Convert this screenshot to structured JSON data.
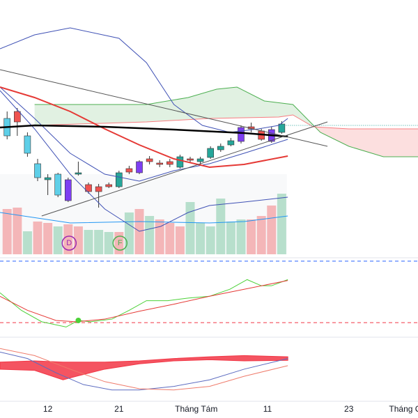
{
  "chart_data": [
    {
      "type": "candlestick",
      "xlim": [
        -0.7,
        40.4
      ],
      "ylim": [
        0,
        370
      ],
      "open": [
        175,
        210,
        175,
        135,
        115,
        120,
        112,
        120,
        105,
        95,
        102,
        102,
        128,
        122,
        138,
        136,
        134,
        130,
        142,
        138,
        144,
        155,
        162,
        167,
        185,
        182,
        167,
        180
      ],
      "high": [
        210,
        215,
        180,
        142,
        120,
        122,
        115,
        138,
        108,
        106,
        108,
        125,
        132,
        140,
        146,
        140,
        142,
        148,
        145,
        145,
        160,
        164,
        172,
        190,
        194,
        185,
        188,
        196
      ],
      "low": [
        170,
        175,
        145,
        110,
        90,
        87,
        80,
        118,
        92,
        72,
        100,
        100,
        120,
        120,
        134,
        130,
        130,
        128,
        136,
        134,
        142,
        152,
        160,
        164,
        180,
        168,
        165,
        178
      ],
      "close": [
        200,
        195,
        150,
        115,
        112,
        90,
        82,
        122,
        95,
        102,
        105,
        122,
        123,
        138,
        142,
        134,
        138,
        145,
        140,
        142,
        157,
        160,
        168,
        187,
        188,
        170,
        184,
        192
      ],
      "colors": [
        "#5ecfe8",
        "#ef5350",
        "#5ecfe8",
        "#5ecfe8",
        "#26a69a",
        "#5ecfe8",
        "#7e3ff2",
        "#26a69a",
        "#ef5350",
        "#ef5350",
        "#ef5350",
        "#26a69a",
        "#ef5350",
        "#7e3ff2",
        "#ef5350",
        "#ef5350",
        "#ef5350",
        "#26a69a",
        "#ef5350",
        "#26a69a",
        "#26a69a",
        "#26a69a",
        "#26a69a",
        "#7e3ff2",
        "#ef5350",
        "#ef5350",
        "#7e3ff2",
        "#26a69a"
      ],
      "volume": {
        "ylim": [
          0,
          100
        ],
        "values": [
          65,
          67,
          33,
          47,
          45,
          40,
          43,
          40,
          35,
          35,
          32,
          32,
          60,
          65,
          55,
          50,
          45,
          40,
          75,
          45,
          40,
          80,
          47,
          50,
          50,
          55,
          70,
          87
        ],
        "colors": [
          "#f4b6b8",
          "#f4b6b8",
          "#b7dfcc",
          "#f4b6b8",
          "#f4b6b8",
          "#b7dfcc",
          "#f4b6b8",
          "#f4b6b8",
          "#b7dfcc",
          "#b7dfcc",
          "#b7dfcc",
          "#f4b6b8",
          "#b7dfcc",
          "#f4b6b8",
          "#b7dfcc",
          "#f4b6b8",
          "#f4b6b8",
          "#f4b6b8",
          "#b7dfcc",
          "#b7dfcc",
          "#b7dfcc",
          "#b7dfcc",
          "#b7dfcc",
          "#b7dfcc",
          "#f4b6b8",
          "#f4b6b8",
          "#f4b6b8",
          "#b7dfcc"
        ],
        "line": {
          "color": "#2196f3",
          "x": [
            -0.7,
            6.2,
            13,
            19.9,
            23.3,
            27.6
          ],
          "values": [
            60,
            45,
            47,
            45,
            47,
            55
          ]
        }
      },
      "cloud": {
        "a": {
          "color": "#4caf50",
          "x": [
            2.7,
            13.7,
            17.8,
            20.6,
            22.6,
            25.3,
            28.1,
            30.8,
            33.6,
            37,
            40.4
          ],
          "values": [
            220,
            220,
            230,
            242,
            245,
            225,
            220,
            180,
            160,
            145,
            145
          ]
        },
        "b": {
          "color": "#f77c80",
          "x": [
            2.7,
            13.7,
            19.9,
            26.7,
            28.1,
            30.1,
            33.6,
            40.4
          ],
          "values": [
            190,
            195,
            200,
            202,
            205,
            188,
            185,
            185
          ]
        },
        "up_fill": "#d9eedb",
        "down_fill": "#fcdcdc"
      },
      "lines": [
        {
          "color": "#3f51b5",
          "width": 1,
          "x": [
            -0.7,
            2.7,
            6.2,
            11,
            13.7,
            16.4,
            19.2,
            21.9,
            24.7,
            26.7,
            27.6
          ],
          "values": [
            300,
            320,
            330,
            315,
            280,
            220,
            190,
            180,
            185,
            190,
            200
          ]
        },
        {
          "color": "#3f51b5",
          "width": 1,
          "x": [
            -0.7,
            2.7,
            6.2,
            9.6,
            13,
            16.4,
            19.9,
            23.3,
            27.6
          ],
          "values": [
            245,
            200,
            150,
            120,
            110,
            125,
            135,
            150,
            170
          ]
        },
        {
          "color": "#3f51b5",
          "width": 1,
          "x": [
            -0.7,
            2.7,
            6.2,
            9.6,
            13,
            15.1,
            17.8,
            19.9,
            23.3,
            27.6
          ],
          "values": [
            240,
            185,
            120,
            70,
            38,
            45,
            65,
            75,
            80,
            87
          ]
        },
        {
          "color": "#e53935",
          "width": 2,
          "x": [
            -0.7,
            2.7,
            6.2,
            9.6,
            13,
            16.4,
            19.9,
            23.3,
            27.6
          ],
          "values": [
            245,
            230,
            210,
            185,
            162,
            142,
            130,
            134,
            146
          ]
        },
        {
          "color": "#000000",
          "width": 2.5,
          "x": [
            -0.7,
            2.7,
            9.6,
            16.4,
            23.3,
            27.6
          ],
          "values": [
            187,
            190,
            188,
            184,
            179,
            174
          ]
        },
        {
          "color": "#555555",
          "width": 1,
          "x": [
            -0.7,
            31.5
          ],
          "values": [
            270,
            160
          ]
        },
        {
          "color": "#555555",
          "width": 1,
          "x": [
            3.4,
            31.5
          ],
          "values": [
            60,
            195
          ]
        }
      ],
      "price_line": {
        "value": 190,
        "color": "#26a69a"
      },
      "markers": [
        {
          "label": "D",
          "x": 6.1,
          "color": "#9c27b0"
        },
        {
          "label": "F",
          "x": 11.1,
          "color": "#4caf50"
        }
      ]
    },
    {
      "type": "line",
      "xlim": [
        -0.7,
        40.4
      ],
      "ylim": [
        0,
        100
      ],
      "levels": [
        85,
        15
      ],
      "level_colors": [
        "#2962ff",
        "#f23645"
      ],
      "lines": [
        {
          "color": "#4cd137",
          "width": 1,
          "x": [
            -0.7,
            1.4,
            3.4,
            5.8,
            7,
            8.2,
            10.3,
            12,
            13.7,
            15.8,
            17.8,
            19.9,
            21.9,
            23.6,
            25,
            26,
            27.6
          ],
          "values": [
            49,
            29,
            16,
            10,
            17.5,
            16,
            19,
            29,
            40,
            40,
            43,
            45,
            53,
            64,
            57,
            57,
            64
          ]
        },
        {
          "color": "#e53935",
          "width": 1,
          "x": [
            -0.7,
            2,
            4.8,
            6.8,
            9.6,
            13,
            16.4,
            19.9,
            23.3,
            27.6
          ],
          "values": [
            45,
            29,
            17.5,
            16,
            19,
            28,
            36,
            45,
            53,
            63
          ]
        }
      ],
      "dot": {
        "x": 7,
        "value": 17.5,
        "color": "#4cd137"
      }
    },
    {
      "type": "line",
      "xlim": [
        -0.7,
        40.4
      ],
      "ylim": [
        0,
        100
      ],
      "band": {
        "color": "#f23645",
        "x": [
          -0.7,
          2.7,
          5.5,
          6.8,
          9.6,
          13,
          16.4,
          19.9,
          23.3,
          27.6
        ],
        "upper": [
          65,
          67,
          65,
          65,
          65,
          67,
          71,
          74,
          76,
          74
        ],
        "lower": [
          53,
          51,
          35,
          41,
          53,
          62,
          67,
          69,
          67,
          68
        ]
      },
      "lines": [
        {
          "color": "#5c6bc0",
          "width": 1,
          "x": [
            -0.7,
            2,
            4.8,
            7.5,
            10.3,
            13,
            16.4,
            19.9,
            23.3,
            27.6
          ],
          "values": [
            82,
            71,
            47,
            27,
            18,
            18,
            24,
            35,
            53,
            71
          ]
        },
        {
          "color": "#ef7b6b",
          "width": 1,
          "x": [
            -0.7,
            2.7,
            6.2,
            9.6,
            13,
            16.4,
            19.9,
            23.3,
            27.6
          ],
          "values": [
            88,
            76,
            53,
            32,
            20,
            18,
            24,
            41,
            59
          ]
        }
      ],
      "xticks": [
        {
          "value": 4,
          "label": "12"
        },
        {
          "value": 11,
          "label": "21"
        },
        {
          "value": 18.6,
          "label": "Tháng Tám"
        },
        {
          "value": 25.6,
          "label": "11"
        },
        {
          "value": 33.6,
          "label": "23"
        },
        {
          "value": 39.7,
          "label": "Tháng Chín"
        }
      ]
    }
  ]
}
